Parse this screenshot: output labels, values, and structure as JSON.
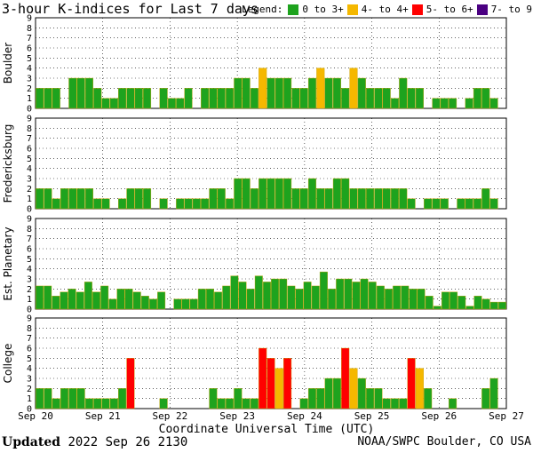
{
  "header": {
    "title": "3-hour K-indices for Last 7 days",
    "legend_label": "Legend:"
  },
  "legend": [
    {
      "label": "0 to 3+",
      "color": "#1ea31e"
    },
    {
      "label": "4- to 4+",
      "color": "#f5b800"
    },
    {
      "label": "5- to 6+",
      "color": "#ff0000"
    },
    {
      "label": "7- to 9",
      "color": "#4b0082"
    }
  ],
  "footer": {
    "updated_label": "Updated",
    "updated_value": "2022 Sep 26 2130",
    "source": "NOAA/SWPC Boulder, CO USA"
  },
  "chart_data": {
    "type": "bar",
    "xlabel": "Coordinate Universal Time (UTC)",
    "x_ticks": [
      "Sep 20",
      "Sep 21",
      "Sep 22",
      "Sep 23",
      "Sep 24",
      "Sep 25",
      "Sep 26",
      "Sep 27"
    ],
    "ylim": [
      0,
      9
    ],
    "y_ticks": [
      0,
      1,
      2,
      3,
      4,
      5,
      6,
      7,
      8,
      9
    ],
    "series": [
      {
        "name": "Boulder",
        "values": [
          2,
          2,
          2,
          0,
          3,
          3,
          3,
          2,
          1,
          1,
          2,
          2,
          2,
          2,
          0,
          2,
          1,
          1,
          2,
          0,
          2,
          2,
          2,
          2,
          3,
          3,
          2,
          4,
          3,
          3,
          3,
          2,
          2,
          3,
          4,
          3,
          3,
          2,
          4,
          3,
          2,
          2,
          2,
          1,
          3,
          2,
          2,
          0,
          1,
          1,
          1,
          0,
          1,
          2,
          2,
          1,
          0
        ]
      },
      {
        "name": "Fredericksburg",
        "values": [
          2,
          2,
          1,
          2,
          2,
          2,
          2,
          1,
          1,
          0,
          1,
          2,
          2,
          2,
          0,
          1,
          0,
          1,
          1,
          1,
          1,
          2,
          2,
          1,
          3,
          3,
          2,
          3,
          3,
          3,
          3,
          2,
          2,
          3,
          2,
          2,
          3,
          3,
          2,
          2,
          2,
          2,
          2,
          2,
          2,
          1,
          0,
          1,
          1,
          1,
          0,
          1,
          1,
          1,
          2,
          1,
          0
        ]
      },
      {
        "name": "Est. Planetary",
        "values": [
          2.3,
          2.3,
          1.3,
          1.7,
          2,
          1.7,
          2.7,
          1.7,
          2.3,
          1,
          2,
          2,
          1.7,
          1.3,
          1,
          1.7,
          0,
          1,
          1,
          1,
          2,
          2,
          1.7,
          2.3,
          3.3,
          2.7,
          2,
          3.3,
          2.7,
          3,
          3,
          2.3,
          2,
          2.7,
          2.3,
          3.7,
          2,
          3,
          3,
          2.7,
          3,
          2.7,
          2.3,
          2,
          2.3,
          2.3,
          2,
          2,
          1.3,
          0.3,
          1.7,
          1.7,
          1.3,
          0.3,
          1.3,
          1,
          0.7,
          0.7
        ]
      },
      {
        "name": "College",
        "values": [
          2,
          2,
          1,
          2,
          2,
          2,
          1,
          1,
          1,
          1,
          2,
          5,
          0,
          0,
          0,
          1,
          0,
          0,
          0,
          0,
          0,
          2,
          1,
          1,
          2,
          1,
          1,
          6,
          5,
          4,
          5,
          0,
          1,
          2,
          2,
          3,
          3,
          6,
          4,
          3,
          2,
          2,
          1,
          1,
          1,
          5,
          4,
          2,
          0,
          0,
          1,
          0,
          0,
          0,
          2,
          3,
          0
        ]
      }
    ]
  }
}
